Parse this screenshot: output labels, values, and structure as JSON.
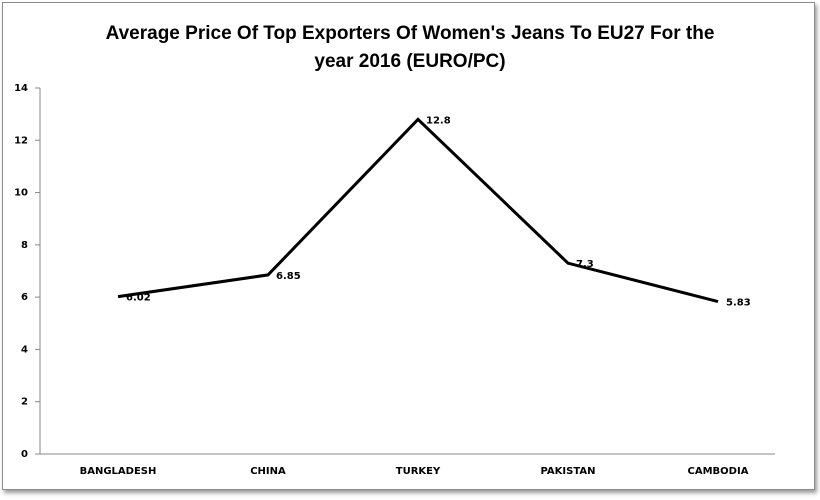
{
  "chart_data": {
    "type": "line",
    "title": "Average Price Of Top Exporters Of Women's Jeans To EU27 For the year 2016 (EURO/PC)",
    "categories": [
      "BANGLADESH",
      "CHINA",
      "TURKEY",
      "PAKISTAN",
      "CAMBODIA"
    ],
    "values": [
      6.02,
      6.85,
      12.8,
      7.3,
      5.83
    ],
    "color": "#000000",
    "ylim": [
      0,
      14
    ],
    "yticks": [
      0,
      2,
      4,
      6,
      8,
      10,
      12,
      14
    ],
    "grid": false
  }
}
